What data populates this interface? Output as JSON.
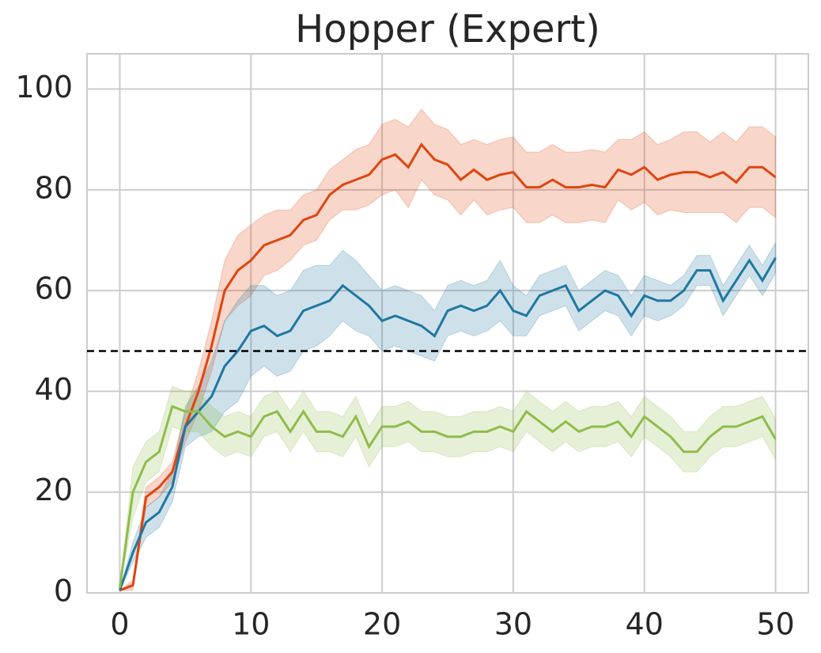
{
  "chart_data": {
    "type": "line",
    "title": "Hopper (Expert)",
    "x": [
      0,
      1,
      2,
      3,
      4,
      5,
      6,
      7,
      8,
      9,
      10,
      11,
      12,
      13,
      14,
      15,
      16,
      17,
      18,
      19,
      20,
      21,
      22,
      23,
      24,
      25,
      26,
      27,
      28,
      29,
      30,
      31,
      32,
      33,
      34,
      35,
      36,
      37,
      38,
      39,
      40,
      41,
      42,
      43,
      44,
      45,
      46,
      47,
      48,
      49,
      50
    ],
    "series": [
      {
        "color": "#e0440e",
        "values": [
          0.5,
          1.5,
          19,
          21,
          24,
          33,
          40,
          49,
          60,
          64,
          66,
          69,
          70,
          71,
          74,
          75,
          79,
          81,
          82,
          83,
          86,
          87,
          84.5,
          89,
          86,
          85,
          82,
          84,
          82,
          83,
          83.5,
          80.5,
          80.5,
          82,
          80.5,
          80.5,
          81,
          80.5,
          84,
          83,
          84.5,
          82,
          83,
          83.5,
          83.5,
          82.5,
          83.5,
          81.5,
          84.5,
          84.5,
          82.5
        ],
        "err": [
          0,
          1,
          2,
          2,
          2,
          3,
          4,
          5,
          6,
          7,
          7,
          6,
          6,
          5,
          5,
          5,
          5,
          5,
          6,
          6,
          7,
          7,
          8,
          7,
          7,
          7,
          7,
          6,
          7,
          7,
          7,
          7,
          7,
          7,
          7,
          7,
          7,
          7,
          6,
          7,
          7,
          7,
          7,
          8,
          8,
          7,
          8,
          8,
          8,
          8,
          8
        ]
      },
      {
        "color": "#1f77a0",
        "values": [
          0.5,
          8,
          14,
          16,
          21,
          33,
          36,
          39,
          45,
          48,
          52,
          53,
          51,
          52,
          56,
          57,
          58,
          61,
          59,
          57,
          54,
          55,
          54,
          53,
          51,
          56,
          57,
          56,
          57,
          60,
          56,
          55,
          59,
          60,
          61,
          56,
          58,
          60,
          59,
          55,
          59,
          58,
          58,
          60,
          64,
          64,
          58,
          62,
          66,
          62,
          66.5
        ],
        "err": [
          0,
          2,
          3,
          3,
          3,
          4,
          5,
          7,
          9,
          10,
          9,
          8,
          8,
          8,
          8,
          8,
          7,
          7,
          7,
          6,
          6,
          6,
          6,
          6,
          5,
          5,
          5,
          5,
          5,
          6,
          5,
          4,
          4,
          4,
          4,
          4,
          4,
          4,
          4,
          4,
          4,
          4,
          3,
          3,
          3,
          3,
          3,
          3,
          3,
          3,
          3
        ]
      },
      {
        "color": "#8fbc4a",
        "values": [
          1,
          20,
          26,
          28,
          37,
          36,
          36,
          33,
          31,
          32,
          31,
          35,
          36,
          32,
          36,
          32,
          32,
          31,
          35,
          29,
          33,
          33,
          34,
          32,
          32,
          31,
          31,
          32,
          32,
          33,
          32,
          36,
          34,
          32,
          34,
          32,
          33,
          33,
          34,
          31,
          35,
          33,
          31,
          28,
          28,
          31,
          33,
          33,
          34,
          35,
          30.5
        ],
        "err": [
          0,
          5,
          4,
          4,
          4,
          4,
          4,
          4,
          4,
          4,
          4,
          4,
          4,
          4,
          4,
          4,
          4,
          4,
          4,
          4,
          4,
          4,
          4,
          4,
          4,
          4,
          4,
          4,
          4,
          4,
          4,
          4,
          4,
          4,
          4,
          4,
          4,
          4,
          4,
          4,
          4,
          4,
          4,
          4,
          4,
          4,
          4,
          4,
          4,
          4,
          4
        ]
      }
    ],
    "reference_line": 48,
    "xlim": [
      -2.5,
      52.5
    ],
    "ylim": [
      0,
      107
    ],
    "xticks": [
      0,
      10,
      20,
      30,
      40,
      50
    ],
    "yticks": [
      0,
      20,
      40,
      60,
      80,
      100
    ],
    "grid": true
  }
}
